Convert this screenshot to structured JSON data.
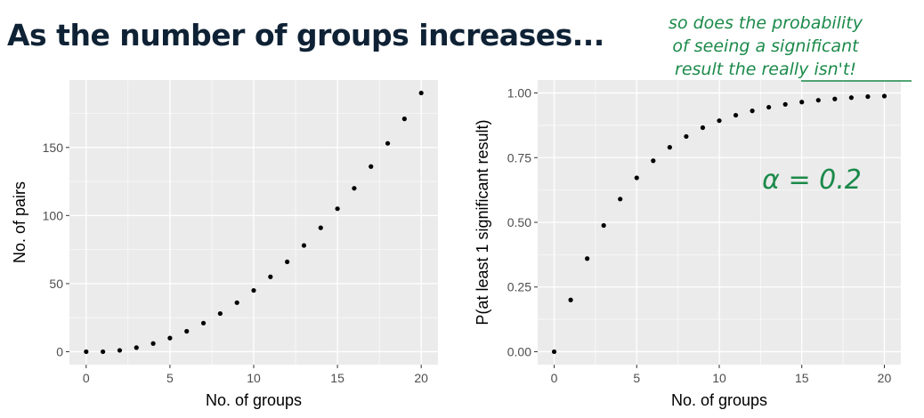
{
  "slide_title": "As the number of groups increases...",
  "annotation": {
    "lines": [
      "so does the probability",
      "of seeing a significant",
      "result the really isn't!"
    ],
    "formula": "α = 0.2",
    "color": "#1b8a4a"
  },
  "chart_data": [
    {
      "type": "scatter",
      "xlabel": "No. of groups",
      "ylabel": "No. of pairs",
      "xlim": [
        -1,
        21
      ],
      "ylim": [
        -9.5,
        199.5
      ],
      "x_ticks": [
        0,
        5,
        10,
        15,
        20
      ],
      "y_ticks": [
        0,
        50,
        100,
        150
      ],
      "x_tick_labels": [
        "0",
        "5",
        "10",
        "15",
        "20"
      ],
      "y_tick_labels": [
        "0",
        "50",
        "100",
        "150"
      ],
      "grid": true,
      "panel_color": "#ebebeb",
      "x": [
        0,
        1,
        2,
        3,
        4,
        5,
        6,
        7,
        8,
        9,
        10,
        11,
        12,
        13,
        14,
        15,
        16,
        17,
        18,
        19,
        20
      ],
      "y": [
        0,
        0,
        1,
        3,
        6,
        10,
        15,
        21,
        28,
        36,
        45,
        55,
        66,
        78,
        91,
        105,
        120,
        136,
        153,
        171,
        190
      ]
    },
    {
      "type": "scatter",
      "xlabel": "No. of groups",
      "ylabel": "P(at least 1 significant result)",
      "xlim": [
        -1,
        21
      ],
      "ylim": [
        -0.05,
        1.05
      ],
      "x_ticks": [
        0,
        5,
        10,
        15,
        20
      ],
      "y_ticks": [
        0,
        0.25,
        0.5,
        0.75,
        1.0
      ],
      "x_tick_labels": [
        "0",
        "5",
        "10",
        "15",
        "20"
      ],
      "y_tick_labels": [
        "0.00",
        "0.25",
        "0.50",
        "0.75",
        "1.00"
      ],
      "grid": true,
      "panel_color": "#ebebeb",
      "x": [
        0,
        1,
        2,
        3,
        4,
        5,
        6,
        7,
        8,
        9,
        10,
        11,
        12,
        13,
        14,
        15,
        16,
        17,
        18,
        19,
        20
      ],
      "y": [
        0,
        0.2,
        0.36,
        0.488,
        0.59,
        0.672,
        0.738,
        0.79,
        0.832,
        0.866,
        0.893,
        0.914,
        0.931,
        0.945,
        0.956,
        0.965,
        0.972,
        0.977,
        0.982,
        0.986,
        0.988
      ]
    }
  ]
}
